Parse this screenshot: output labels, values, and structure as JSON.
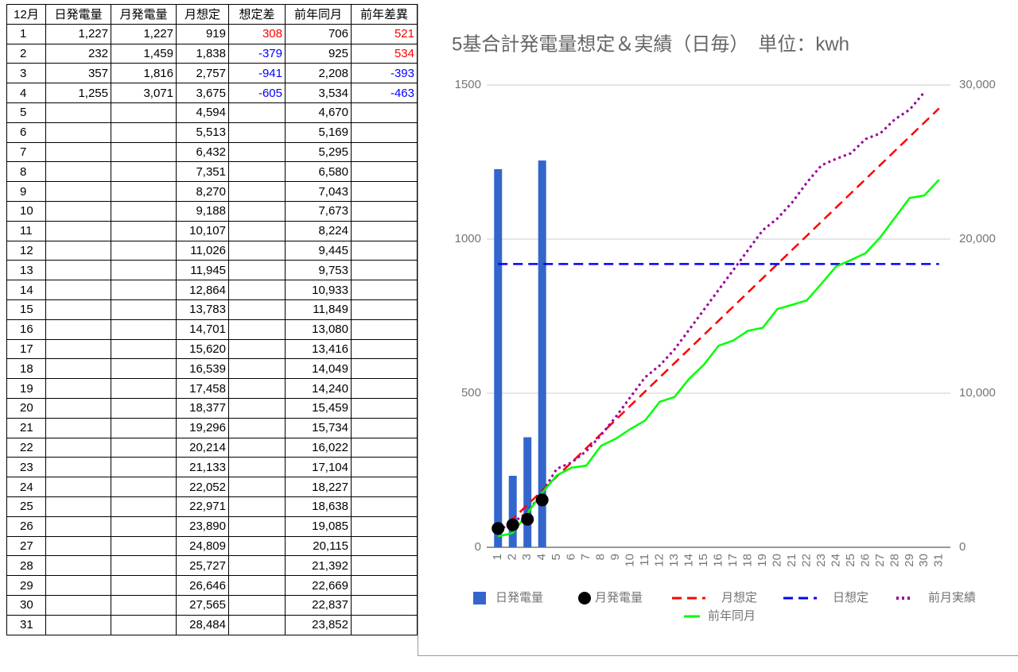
{
  "table": {
    "header": [
      "12月",
      "日発電量",
      "月発電量",
      "月想定",
      "想定差",
      "前年同月",
      "前年差異"
    ],
    "rows": [
      {
        "day": "1",
        "daily": "1,227",
        "monthly": "1,227",
        "plan": "919",
        "plan_diff": "308",
        "prev_year": "706",
        "prev_diff": "521"
      },
      {
        "day": "2",
        "daily": "232",
        "monthly": "1,459",
        "plan": "1,838",
        "plan_diff": "-379",
        "prev_year": "925",
        "prev_diff": "534"
      },
      {
        "day": "3",
        "daily": "357",
        "monthly": "1,816",
        "plan": "2,757",
        "plan_diff": "-941",
        "prev_year": "2,208",
        "prev_diff": "-393"
      },
      {
        "day": "4",
        "daily": "1,255",
        "monthly": "3,071",
        "plan": "3,675",
        "plan_diff": "-605",
        "prev_year": "3,534",
        "prev_diff": "-463"
      },
      {
        "day": "5",
        "plan": "4,594",
        "prev_year": "4,670"
      },
      {
        "day": "6",
        "plan": "5,513",
        "prev_year": "5,169"
      },
      {
        "day": "7",
        "plan": "6,432",
        "prev_year": "5,295"
      },
      {
        "day": "8",
        "plan": "7,351",
        "prev_year": "6,580"
      },
      {
        "day": "9",
        "plan": "8,270",
        "prev_year": "7,043"
      },
      {
        "day": "10",
        "plan": "9,188",
        "prev_year": "7,673"
      },
      {
        "day": "11",
        "plan": "10,107",
        "prev_year": "8,224"
      },
      {
        "day": "12",
        "plan": "11,026",
        "prev_year": "9,445"
      },
      {
        "day": "13",
        "plan": "11,945",
        "prev_year": "9,753"
      },
      {
        "day": "14",
        "plan": "12,864",
        "prev_year": "10,933"
      },
      {
        "day": "15",
        "plan": "13,783",
        "prev_year": "11,849"
      },
      {
        "day": "16",
        "plan": "14,701",
        "prev_year": "13,080"
      },
      {
        "day": "17",
        "plan": "15,620",
        "prev_year": "13,416"
      },
      {
        "day": "18",
        "plan": "16,539",
        "prev_year": "14,049"
      },
      {
        "day": "19",
        "plan": "17,458",
        "prev_year": "14,240"
      },
      {
        "day": "20",
        "plan": "18,377",
        "prev_year": "15,459"
      },
      {
        "day": "21",
        "plan": "19,296",
        "prev_year": "15,734"
      },
      {
        "day": "22",
        "plan": "20,214",
        "prev_year": "16,022"
      },
      {
        "day": "23",
        "plan": "21,133",
        "prev_year": "17,104"
      },
      {
        "day": "24",
        "plan": "22,052",
        "prev_year": "18,227"
      },
      {
        "day": "25",
        "plan": "22,971",
        "prev_year": "18,638"
      },
      {
        "day": "26",
        "plan": "23,890",
        "prev_year": "19,085"
      },
      {
        "day": "27",
        "plan": "24,809",
        "prev_year": "20,115"
      },
      {
        "day": "28",
        "plan": "25,727",
        "prev_year": "21,392"
      },
      {
        "day": "29",
        "plan": "26,646",
        "prev_year": "22,669"
      },
      {
        "day": "30",
        "plan": "27,565",
        "prev_year": "22,837"
      },
      {
        "day": "31",
        "plan": "28,484",
        "prev_year": "23,852"
      }
    ]
  },
  "chart_data": {
    "type": "combo",
    "title": "5基合計発電量想定＆実績（日毎）　単位：kwh",
    "categories": [
      1,
      2,
      3,
      4,
      5,
      6,
      7,
      8,
      9,
      10,
      11,
      12,
      13,
      14,
      15,
      16,
      17,
      18,
      19,
      20,
      21,
      22,
      23,
      24,
      25,
      26,
      27,
      28,
      29,
      30,
      31
    ],
    "ylim": [
      0,
      1500
    ],
    "yticks": [
      0,
      500,
      1000,
      1500
    ],
    "y2lim": [
      0,
      30000
    ],
    "y2ticks": [
      0,
      {
        "value": 10000,
        "label": "10,000"
      },
      {
        "value": 20000,
        "label": "20,000"
      },
      {
        "value": 30000,
        "label": "30,000"
      }
    ],
    "grid": true,
    "legend": "bottom",
    "series": [
      {
        "name": "日発電量",
        "type": "bar",
        "color": "#3366cc",
        "values": [
          1227,
          232,
          357,
          1255,
          null,
          null,
          null,
          null,
          null,
          null,
          null,
          null,
          null,
          null,
          null,
          null,
          null,
          null,
          null,
          null,
          null,
          null,
          null,
          null,
          null,
          null,
          null,
          null,
          null,
          null,
          null
        ]
      },
      {
        "name": "月発電量",
        "type": "scatter",
        "axis": "y2",
        "color": "#000000",
        "values": [
          1227,
          1459,
          1816,
          3071,
          null,
          null,
          null,
          null,
          null,
          null,
          null,
          null,
          null,
          null,
          null,
          null,
          null,
          null,
          null,
          null,
          null,
          null,
          null,
          null,
          null,
          null,
          null,
          null,
          null,
          null,
          null
        ]
      },
      {
        "name": "月想定",
        "type": "line",
        "dash": "dashed",
        "axis": "y2",
        "color": "#ff0000",
        "values": [
          919,
          1838,
          2757,
          3675,
          4594,
          5513,
          6432,
          7351,
          8270,
          9188,
          10107,
          11026,
          11945,
          12864,
          13783,
          14701,
          15620,
          16539,
          17458,
          18377,
          19296,
          20214,
          21133,
          22052,
          22971,
          23890,
          24809,
          25727,
          26646,
          27565,
          28484
        ]
      },
      {
        "name": "日想定",
        "type": "line",
        "dash": "dashed",
        "color": "#0000ff",
        "values": [
          919,
          919,
          919,
          919,
          919,
          919,
          919,
          919,
          919,
          919,
          919,
          919,
          919,
          919,
          919,
          919,
          919,
          919,
          919,
          919,
          919,
          919,
          919,
          919,
          919,
          919,
          919,
          919,
          919,
          919,
          919
        ]
      },
      {
        "name": "前月実績",
        "type": "line",
        "dash": "dotted",
        "axis": "y2",
        "color": "#990099",
        "values": [
          1080,
          1600,
          2270,
          3560,
          5100,
          5500,
          6240,
          7270,
          8450,
          9740,
          11030,
          11800,
          12840,
          14120,
          15410,
          16700,
          17990,
          19280,
          20570,
          21340,
          22370,
          23660,
          24790,
          25210,
          25570,
          26490,
          26860,
          27780,
          28400,
          29540,
          null
        ]
      },
      {
        "name": "前年同月",
        "type": "line",
        "dash": "solid",
        "axis": "y2",
        "color": "#00ff00",
        "values": [
          706,
          925,
          2208,
          3534,
          4670,
          5169,
          5295,
          6580,
          7043,
          7673,
          8224,
          9445,
          9753,
          10933,
          11849,
          13080,
          13416,
          14049,
          14240,
          15459,
          15734,
          16022,
          17104,
          18227,
          18638,
          19085,
          20115,
          21392,
          22669,
          22837,
          23852
        ]
      }
    ]
  }
}
